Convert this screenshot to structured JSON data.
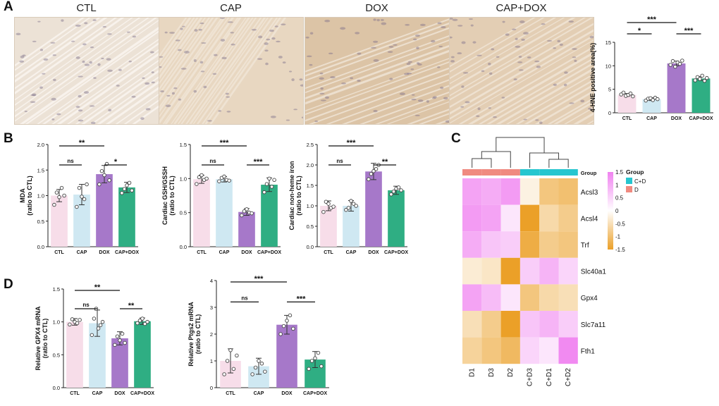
{
  "panels": {
    "A": {
      "letter": "A",
      "image_titles": [
        "CTL",
        "CAP",
        "DOX",
        "CAP+DOX"
      ],
      "image_tones": [
        "#ece2d6",
        "#e8d7c1",
        "#dcc4a6",
        "#e3ceb4"
      ]
    },
    "B": {
      "letter": "B"
    },
    "C": {
      "letter": "C"
    },
    "D": {
      "letter": "D"
    }
  },
  "colors": {
    "CTL": "#f7dde9",
    "CAP": "#cfe8f2",
    "DOX": "#a678c9",
    "CAP+DOX": "#2fae83",
    "C+D": "#26c6cf",
    "D": "#f08a80"
  },
  "chart_data": [
    {
      "id": "hne",
      "type": "bar",
      "ylabel": "4-HNE positive area(%)",
      "categories": [
        "CTL",
        "CAP",
        "DOX",
        "CAP+DOX"
      ],
      "values": [
        3.8,
        2.9,
        10.5,
        7.3
      ],
      "errors": [
        0.3,
        0.3,
        0.5,
        0.4
      ],
      "points": [
        [
          3.9,
          4.3,
          3.6,
          3.8,
          4.1,
          3.5
        ],
        [
          2.6,
          3.0,
          3.1,
          2.7,
          3.2,
          2.9
        ],
        [
          10.2,
          11.0,
          9.8,
          10.7,
          10.4,
          11.1
        ],
        [
          6.9,
          7.6,
          7.2,
          7.9,
          6.8,
          7.4
        ]
      ],
      "ylim": [
        0,
        15
      ],
      "yticks": [
        0,
        5,
        10,
        15
      ],
      "sig": [
        {
          "from": 0,
          "to": 1,
          "label": "*"
        },
        {
          "from": 0,
          "to": 2,
          "label": "***"
        },
        {
          "from": 2,
          "to": 3,
          "label": "***"
        }
      ]
    },
    {
      "id": "mda",
      "type": "bar",
      "ylabel": "MDA\n(ratio to CTL)",
      "categories": [
        "CTL",
        "CAP",
        "DOX",
        "CAP+DOX"
      ],
      "values": [
        1.0,
        1.02,
        1.42,
        1.16
      ],
      "errors": [
        0.12,
        0.2,
        0.17,
        0.1
      ],
      "points": [
        [
          0.82,
          1.06,
          0.97,
          1.15,
          1.0
        ],
        [
          0.78,
          1.15,
          0.98,
          0.93,
          1.22
        ],
        [
          1.22,
          1.48,
          1.4,
          1.62,
          1.3
        ],
        [
          1.05,
          1.13,
          1.2,
          1.25,
          1.1
        ]
      ],
      "ylim": [
        0,
        2.0
      ],
      "yticks": [
        0.0,
        0.5,
        1.0,
        1.5,
        2.0
      ],
      "sig": [
        {
          "from": 0,
          "to": 1,
          "label": "ns"
        },
        {
          "from": 0,
          "to": 2,
          "label": "**"
        },
        {
          "from": 2,
          "to": 3,
          "label": "*"
        }
      ]
    },
    {
      "id": "gsh",
      "type": "bar",
      "ylabel": "Cardiac GSH/GSSH\n(ratio to CTL)",
      "categories": [
        "CTL",
        "CAP",
        "DOX",
        "CAP+DOX"
      ],
      "values": [
        0.99,
        0.99,
        0.51,
        0.91
      ],
      "errors": [
        0.06,
        0.04,
        0.05,
        0.1
      ],
      "points": [
        [
          0.92,
          1.02,
          1.05,
          0.98,
          1.0
        ],
        [
          0.96,
          1.01,
          1.03,
          0.98,
          0.97
        ],
        [
          0.46,
          0.52,
          0.55,
          0.5,
          0.49
        ],
        [
          0.8,
          0.92,
          1.0,
          0.88,
          0.98
        ]
      ],
      "ylim": [
        0,
        1.5
      ],
      "yticks": [
        0.0,
        0.5,
        1.0,
        1.5
      ],
      "sig": [
        {
          "from": 0,
          "to": 1,
          "label": "ns"
        },
        {
          "from": 0,
          "to": 2,
          "label": "***"
        },
        {
          "from": 2,
          "to": 3,
          "label": "***"
        }
      ]
    },
    {
      "id": "iron",
      "type": "bar",
      "ylabel": "Cardiac non-heme iron\n(ratio to CTL)",
      "categories": [
        "CTL",
        "CAP",
        "DOX",
        "CAP+DOX"
      ],
      "values": [
        1.0,
        1.0,
        1.84,
        1.38
      ],
      "errors": [
        0.12,
        0.13,
        0.2,
        0.1
      ],
      "points": [
        [
          0.85,
          1.1,
          1.05,
          0.95,
          0.98
        ],
        [
          0.9,
          0.95,
          1.12,
          1.05,
          1.0
        ],
        [
          1.65,
          1.78,
          1.85,
          1.9,
          2.0
        ],
        [
          1.28,
          1.35,
          1.42,
          1.45,
          1.38
        ]
      ],
      "ylim": [
        0,
        2.5
      ],
      "yticks": [
        0.0,
        0.5,
        1.0,
        1.5,
        2.0,
        2.5
      ],
      "sig": [
        {
          "from": 0,
          "to": 1,
          "label": "ns"
        },
        {
          "from": 0,
          "to": 2,
          "label": "***"
        },
        {
          "from": 2,
          "to": 3,
          "label": "**"
        }
      ]
    },
    {
      "id": "gpx4",
      "type": "bar",
      "ylabel": "Relative GPX4 mRNA\n(ratio to CTL)",
      "categories": [
        "CTL",
        "CAP",
        "DOX",
        "CAP+DOX"
      ],
      "values": [
        1.0,
        0.98,
        0.75,
        1.01
      ],
      "errors": [
        0.05,
        0.2,
        0.1,
        0.05
      ],
      "points": [
        [
          0.96,
          1.04,
          1.0,
          0.98,
          1.03
        ],
        [
          0.8,
          1.05,
          1.2,
          0.9,
          0.95,
          1.0
        ],
        [
          0.65,
          0.78,
          0.72,
          0.82,
          0.68
        ],
        [
          0.98,
          1.02,
          1.05,
          0.97,
          1.0
        ]
      ],
      "ylim": [
        0,
        1.5
      ],
      "yticks": [
        0.0,
        0.5,
        1.0,
        1.5
      ],
      "sig": [
        {
          "from": 0,
          "to": 1,
          "label": "ns"
        },
        {
          "from": 0,
          "to": 2,
          "label": "**"
        },
        {
          "from": 2,
          "to": 3,
          "label": "**"
        }
      ]
    },
    {
      "id": "ptgs2",
      "type": "bar",
      "ylabel": "Relative Ptgs2 mRNA\n(ratio to CTL)",
      "categories": [
        "CTL",
        "CAP",
        "DOX",
        "CAP+DOX"
      ],
      "values": [
        1.0,
        0.8,
        2.35,
        1.05
      ],
      "errors": [
        0.45,
        0.3,
        0.35,
        0.3
      ],
      "points": [
        [
          0.5,
          1.0,
          1.4,
          0.7,
          1.2
        ],
        [
          0.5,
          0.75,
          1.0,
          0.9,
          0.6
        ],
        [
          2.0,
          2.3,
          2.5,
          2.7,
          2.2
        ],
        [
          0.7,
          1.0,
          1.1,
          1.3,
          0.8
        ]
      ],
      "ylim": [
        0,
        4
      ],
      "yticks": [
        0,
        1,
        2,
        3,
        4
      ],
      "sig": [
        {
          "from": 0,
          "to": 1,
          "label": "ns"
        },
        {
          "from": 0,
          "to": 2,
          "label": "***"
        },
        {
          "from": 2,
          "to": 3,
          "label": "***"
        }
      ]
    },
    {
      "id": "heatmap",
      "type": "heatmap",
      "rows": [
        "Acsl3",
        "Acsl4",
        "Trf",
        "Slc40a1",
        "Gpx4",
        "Slc7a11",
        "Fth1"
      ],
      "columns": [
        "D1",
        "D3",
        "D2",
        "C+D3",
        "C+D1",
        "C+D2"
      ],
      "groups": [
        "D",
        "D",
        "D",
        "C+D",
        "C+D",
        "C+D"
      ],
      "values": [
        [
          1.1,
          1.0,
          1.2,
          -0.2,
          -0.9,
          -1.0
        ],
        [
          1.2,
          1.1,
          0.3,
          -1.5,
          -0.6,
          -0.8
        ],
        [
          1.0,
          0.7,
          0.6,
          -1.3,
          -0.8,
          -0.9
        ],
        [
          -0.3,
          -0.4,
          -1.5,
          0.6,
          0.9,
          0.5
        ],
        [
          1.1,
          0.8,
          0.3,
          -0.9,
          -0.6,
          -0.5
        ],
        [
          -0.5,
          -0.8,
          -1.5,
          0.7,
          0.9,
          0.6
        ],
        [
          -0.7,
          -0.9,
          -1.1,
          0.5,
          0.3,
          1.4
        ]
      ],
      "group_row_label": "Group",
      "colorbar_ticks": [
        1.5,
        1,
        0.5,
        0,
        -0.5,
        -1,
        -1.5
      ],
      "legend_title": "Group",
      "legend_entries": [
        "C+D",
        "D"
      ]
    }
  ]
}
